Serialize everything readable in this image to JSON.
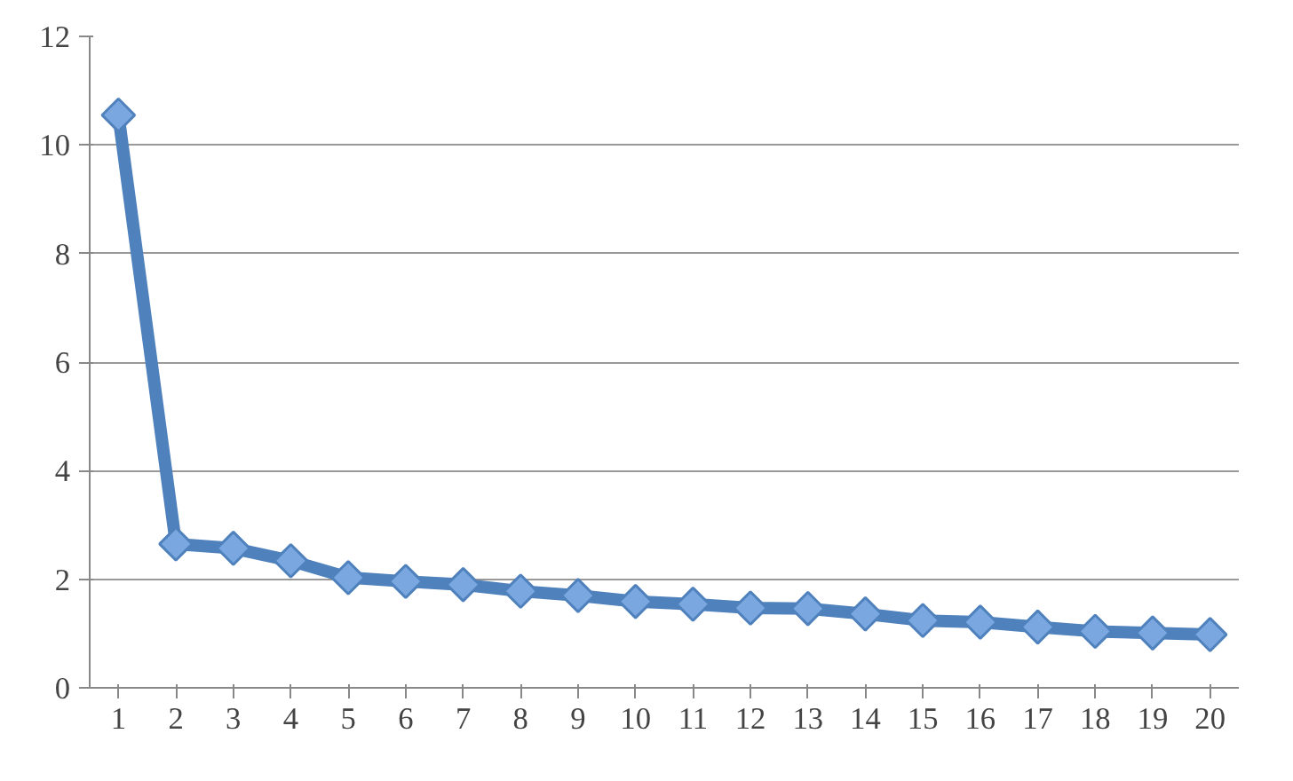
{
  "chart_data": {
    "type": "line",
    "x": [
      1,
      2,
      3,
      4,
      5,
      6,
      7,
      8,
      9,
      10,
      11,
      12,
      13,
      14,
      15,
      16,
      17,
      18,
      19,
      20
    ],
    "series": [
      {
        "color": "#4f81bd",
        "values": [
          10.55,
          2.65,
          2.57,
          2.34,
          2.03,
          1.96,
          1.9,
          1.78,
          1.7,
          1.59,
          1.54,
          1.47,
          1.46,
          1.36,
          1.24,
          1.21,
          1.12,
          1.04,
          1.01,
          0.98
        ]
      }
    ],
    "xlim": [
      0.5,
      20.5
    ],
    "xticks": [
      1,
      2,
      3,
      4,
      5,
      6,
      7,
      8,
      9,
      10,
      11,
      12,
      13,
      14,
      15,
      16,
      17,
      18,
      19,
      20
    ],
    "ylim": [
      0,
      12
    ],
    "yticks": [
      0,
      2,
      4,
      6,
      8,
      10,
      12
    ],
    "grid": "y",
    "marker": "diamond",
    "line_style": "solid"
  }
}
